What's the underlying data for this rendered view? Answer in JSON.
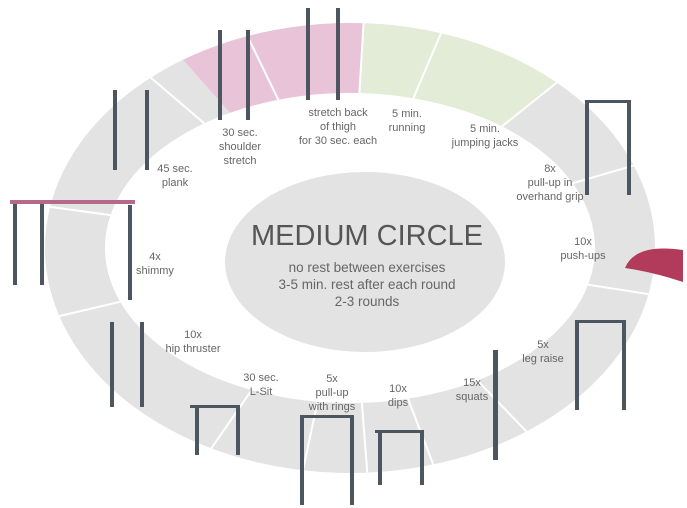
{
  "title": "MEDIUM CIRCLE",
  "notes": [
    "no rest between exercises",
    "3-5 min. rest after each round",
    "2-3 rounds"
  ],
  "stations": [
    {
      "lines": [
        "5 min.",
        "running"
      ]
    },
    {
      "lines": [
        "5 min.",
        "jumping jacks"
      ]
    },
    {
      "lines": [
        "8x",
        "pull-up in",
        "overhand grip"
      ]
    },
    {
      "lines": [
        "10x",
        "push-ups"
      ]
    },
    {
      "lines": [
        "5x",
        "leg raise"
      ]
    },
    {
      "lines": [
        "15x",
        "squats"
      ]
    },
    {
      "lines": [
        "10x",
        "dips"
      ]
    },
    {
      "lines": [
        "5x",
        "pull-up",
        "with rings"
      ]
    },
    {
      "lines": [
        "30 sec.",
        "L-Sit"
      ]
    },
    {
      "lines": [
        "10x",
        "hip thruster"
      ]
    },
    {
      "lines": [
        "4x",
        "shimmy"
      ]
    },
    {
      "lines": [
        "45 sec.",
        "plank"
      ]
    },
    {
      "lines": [
        "30 sec.",
        "shoulder",
        "stretch"
      ]
    },
    {
      "lines": [
        "stretch back",
        "of thigh",
        "for 30 sec. each"
      ]
    }
  ]
}
